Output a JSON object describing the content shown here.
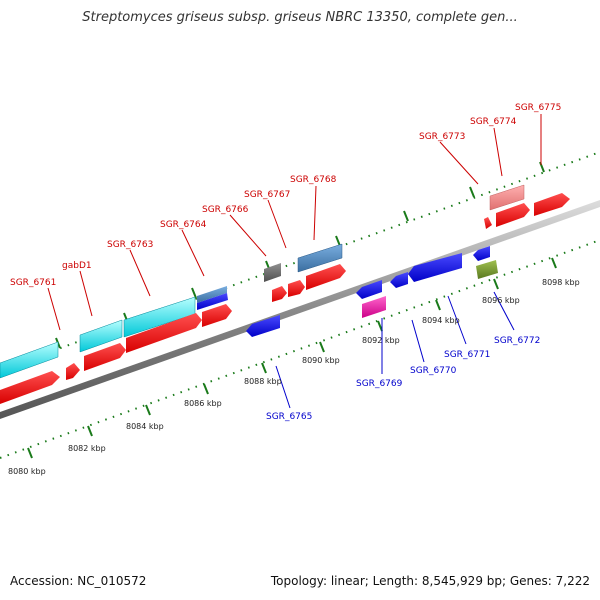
{
  "title": "Streptomyces griseus subsp. griseus NBRC 13350, complete gen...",
  "footer": {
    "accession": "Accession: NC_010572",
    "summary": "Topology: linear; Length: 8,545,929 bp; Genes: 7,222"
  },
  "ruler_labels": [
    "8080 kbp",
    "8082 kbp",
    "8084 kbp",
    "8086 kbp",
    "8088 kbp",
    "8090 kbp",
    "8092 kbp",
    "8094 kbp",
    "8096 kbp",
    "8098 kbp"
  ],
  "colors": {
    "top_strand_label": "#cc0000",
    "bottom_strand_label": "#0000cc",
    "backbone": "#8a8a8a",
    "tick": "#1a7a1a"
  },
  "genes_top": [
    {
      "label": "SGR_6761"
    },
    {
      "label": "gabD1"
    },
    {
      "label": "SGR_6763"
    },
    {
      "label": "SGR_6764"
    },
    {
      "label": "SGR_6766"
    },
    {
      "label": "SGR_6767"
    },
    {
      "label": "SGR_6768"
    },
    {
      "label": "SGR_6773"
    },
    {
      "label": "SGR_6774"
    },
    {
      "label": "SGR_6775"
    }
  ],
  "genes_bottom": [
    {
      "label": "SGR_6765"
    },
    {
      "label": "SGR_6769"
    },
    {
      "label": "SGR_6770"
    },
    {
      "label": "SGR_6771"
    },
    {
      "label": "SGR_6772"
    }
  ]
}
